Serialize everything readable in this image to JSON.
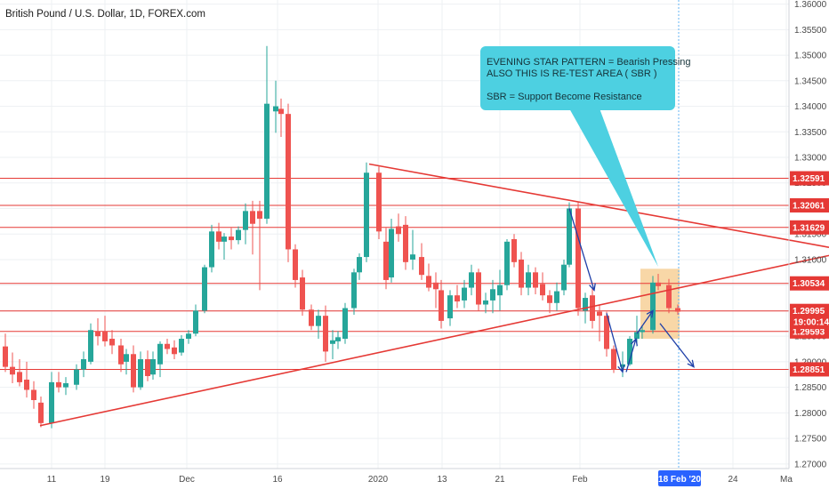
{
  "chart_data": {
    "type": "candlestick",
    "title": "British Pound / U.S. Dollar, 1D, FOREX.com",
    "y_axis": {
      "ylim": [
        1.2691,
        1.3608
      ],
      "ticks": [
        "1.36000",
        "1.35500",
        "1.35000",
        "1.34500",
        "1.34000",
        "1.33500",
        "1.33000",
        "1.32500",
        "1.32000",
        "1.31500",
        "1.31000",
        "1.30500",
        "1.30000",
        "1.29500",
        "1.29000",
        "1.28500",
        "1.28000",
        "1.27500",
        "1.27000"
      ],
      "scale": "linear",
      "side": "right"
    },
    "x_axis": {
      "ticks": [
        "11",
        "19",
        "Dec",
        "16",
        "2020",
        "13",
        "21",
        "Feb",
        "24",
        "Ma"
      ],
      "highlight_label": "18 Feb '20"
    },
    "grid": true,
    "colors": {
      "up": "#26a69a",
      "down": "#ef5350",
      "level": "#e53935",
      "trend": "#e53935",
      "arrow": "#1e3fa8",
      "callout": "#4dd0e1",
      "zone": "#f6c98a",
      "crosshair": "#64b5f6"
    },
    "levels": [
      {
        "label": "1.32591",
        "y": 1.32591
      },
      {
        "label": "1.32061",
        "y": 1.32061
      },
      {
        "label": "1.31629",
        "y": 1.31629
      },
      {
        "label": "1.30534",
        "y": 1.30534
      },
      {
        "label": "1.29995",
        "y": 1.29995
      },
      {
        "label": "1.29593",
        "y": 1.29593
      },
      {
        "label": "1.28851",
        "y": 1.28851
      }
    ],
    "countdown_label": "19:00:14",
    "countdown_y": 1.2978,
    "trend_lines": [
      {
        "name": "upper",
        "p1": [
          415,
          1.3287
        ],
        "p2": [
          932,
          1.3124
        ]
      },
      {
        "name": "lower",
        "p1": [
          45,
          1.2775
        ],
        "p2": [
          932,
          1.3108
        ]
      }
    ],
    "zone": {
      "x1": 720,
      "x2": 764,
      "y1": 1.3082,
      "y2": 1.2945
    },
    "candles": [
      {
        "x": 6,
        "o": 1.293,
        "h": 1.2955,
        "l": 1.288,
        "c": 1.289
      },
      {
        "x": 14,
        "o": 1.289,
        "h": 1.2918,
        "l": 1.2858,
        "c": 1.2875
      },
      {
        "x": 22,
        "o": 1.288,
        "h": 1.2905,
        "l": 1.2852,
        "c": 1.286
      },
      {
        "x": 30,
        "o": 1.2865,
        "h": 1.29,
        "l": 1.283,
        "c": 1.2845
      },
      {
        "x": 38,
        "o": 1.2845,
        "h": 1.2862,
        "l": 1.2808,
        "c": 1.2825
      },
      {
        "x": 46,
        "o": 1.282,
        "h": 1.2832,
        "l": 1.2772,
        "c": 1.278
      },
      {
        "x": 58,
        "o": 1.278,
        "h": 1.288,
        "l": 1.277,
        "c": 1.286
      },
      {
        "x": 66,
        "o": 1.286,
        "h": 1.288,
        "l": 1.284,
        "c": 1.285
      },
      {
        "x": 74,
        "o": 1.285,
        "h": 1.287,
        "l": 1.2835,
        "c": 1.2858
      },
      {
        "x": 86,
        "o": 1.2855,
        "h": 1.2895,
        "l": 1.2845,
        "c": 1.2885
      },
      {
        "x": 94,
        "o": 1.2885,
        "h": 1.292,
        "l": 1.287,
        "c": 1.2905
      },
      {
        "x": 102,
        "o": 1.29,
        "h": 1.2975,
        "l": 1.2895,
        "c": 1.2962
      },
      {
        "x": 110,
        "o": 1.296,
        "h": 1.2985,
        "l": 1.2932,
        "c": 1.295
      },
      {
        "x": 118,
        "o": 1.296,
        "h": 1.299,
        "l": 1.293,
        "c": 1.294
      },
      {
        "x": 126,
        "o": 1.2945,
        "h": 1.2962,
        "l": 1.2915,
        "c": 1.2932
      },
      {
        "x": 136,
        "o": 1.2932,
        "h": 1.2945,
        "l": 1.288,
        "c": 1.2895
      },
      {
        "x": 142,
        "o": 1.29,
        "h": 1.2925,
        "l": 1.2875,
        "c": 1.2915
      },
      {
        "x": 150,
        "o": 1.2915,
        "h": 1.2932,
        "l": 1.284,
        "c": 1.285
      },
      {
        "x": 158,
        "o": 1.285,
        "h": 1.292,
        "l": 1.2845,
        "c": 1.2905
      },
      {
        "x": 166,
        "o": 1.2905,
        "h": 1.2922,
        "l": 1.2862,
        "c": 1.2872
      },
      {
        "x": 172,
        "o": 1.2875,
        "h": 1.292,
        "l": 1.2865,
        "c": 1.2905
      },
      {
        "x": 180,
        "o": 1.2895,
        "h": 1.294,
        "l": 1.287,
        "c": 1.2935
      },
      {
        "x": 188,
        "o": 1.2935,
        "h": 1.2945,
        "l": 1.2915,
        "c": 1.2925
      },
      {
        "x": 196,
        "o": 1.2928,
        "h": 1.2942,
        "l": 1.2905,
        "c": 1.2915
      },
      {
        "x": 204,
        "o": 1.2918,
        "h": 1.2952,
        "l": 1.2912,
        "c": 1.2945
      },
      {
        "x": 212,
        "o": 1.2945,
        "h": 1.2962,
        "l": 1.2935,
        "c": 1.2955
      },
      {
        "x": 220,
        "o": 1.2955,
        "h": 1.3012,
        "l": 1.295,
        "c": 1.3
      },
      {
        "x": 230,
        "o": 1.3,
        "h": 1.309,
        "l": 1.2995,
        "c": 1.3085
      },
      {
        "x": 238,
        "o": 1.3085,
        "h": 1.3168,
        "l": 1.3075,
        "c": 1.3155
      },
      {
        "x": 246,
        "o": 1.3155,
        "h": 1.3172,
        "l": 1.312,
        "c": 1.3135
      },
      {
        "x": 252,
        "o": 1.3135,
        "h": 1.3152,
        "l": 1.31,
        "c": 1.3145
      },
      {
        "x": 260,
        "o": 1.3145,
        "h": 1.3162,
        "l": 1.312,
        "c": 1.3138
      },
      {
        "x": 268,
        "o": 1.3138,
        "h": 1.3165,
        "l": 1.313,
        "c": 1.3158
      },
      {
        "x": 276,
        "o": 1.3158,
        "h": 1.321,
        "l": 1.313,
        "c": 1.3195
      },
      {
        "x": 284,
        "o": 1.3195,
        "h": 1.3215,
        "l": 1.311,
        "c": 1.317
      },
      {
        "x": 292,
        "o": 1.3195,
        "h": 1.3215,
        "l": 1.304,
        "c": 1.318
      },
      {
        "x": 300,
        "o": 1.318,
        "h": 1.3518,
        "l": 1.317,
        "c": 1.3405
      },
      {
        "x": 310,
        "o": 1.339,
        "h": 1.345,
        "l": 1.3348,
        "c": 1.34
      },
      {
        "x": 316,
        "o": 1.3395,
        "h": 1.3415,
        "l": 1.334,
        "c": 1.3385
      },
      {
        "x": 324,
        "o": 1.3385,
        "h": 1.3405,
        "l": 1.3095,
        "c": 1.312
      },
      {
        "x": 332,
        "o": 1.312,
        "h": 1.313,
        "l": 1.3045,
        "c": 1.306
      },
      {
        "x": 340,
        "o": 1.3065,
        "h": 1.308,
        "l": 1.299,
        "c": 1.3002
      },
      {
        "x": 350,
        "o": 1.3002,
        "h": 1.3012,
        "l": 1.2962,
        "c": 1.297
      },
      {
        "x": 358,
        "o": 1.297,
        "h": 1.3002,
        "l": 1.2945,
        "c": 1.299
      },
      {
        "x": 366,
        "o": 1.299,
        "h": 1.301,
        "l": 1.29,
        "c": 1.292
      },
      {
        "x": 374,
        "o": 1.2935,
        "h": 1.2962,
        "l": 1.2905,
        "c": 1.2942
      },
      {
        "x": 380,
        "o": 1.294,
        "h": 1.296,
        "l": 1.2925,
        "c": 1.2948
      },
      {
        "x": 388,
        "o": 1.2945,
        "h": 1.3015,
        "l": 1.2935,
        "c": 1.3005
      },
      {
        "x": 398,
        "o": 1.3005,
        "h": 1.3082,
        "l": 1.2992,
        "c": 1.3075
      },
      {
        "x": 404,
        "o": 1.3075,
        "h": 1.3112,
        "l": 1.306,
        "c": 1.3105
      },
      {
        "x": 412,
        "o": 1.3105,
        "h": 1.329,
        "l": 1.3095,
        "c": 1.327
      },
      {
        "x": 426,
        "o": 1.327,
        "h": 1.3282,
        "l": 1.314,
        "c": 1.3155
      },
      {
        "x": 434,
        "o": 1.3135,
        "h": 1.3162,
        "l": 1.3042,
        "c": 1.306
      },
      {
        "x": 440,
        "o": 1.3065,
        "h": 1.318,
        "l": 1.3055,
        "c": 1.316
      },
      {
        "x": 448,
        "o": 1.3165,
        "h": 1.319,
        "l": 1.3135,
        "c": 1.315
      },
      {
        "x": 456,
        "o": 1.3168,
        "h": 1.3185,
        "l": 1.308,
        "c": 1.3095
      },
      {
        "x": 464,
        "o": 1.31,
        "h": 1.3158,
        "l": 1.308,
        "c": 1.311
      },
      {
        "x": 474,
        "o": 1.3105,
        "h": 1.3132,
        "l": 1.306,
        "c": 1.307
      },
      {
        "x": 482,
        "o": 1.3068,
        "h": 1.3092,
        "l": 1.3038,
        "c": 1.3045
      },
      {
        "x": 490,
        "o": 1.3055,
        "h": 1.3075,
        "l": 1.3005,
        "c": 1.3042
      },
      {
        "x": 496,
        "o": 1.304,
        "h": 1.306,
        "l": 1.2965,
        "c": 1.298
      },
      {
        "x": 506,
        "o": 1.2985,
        "h": 1.304,
        "l": 1.297,
        "c": 1.303
      },
      {
        "x": 514,
        "o": 1.303,
        "h": 1.305,
        "l": 1.3005,
        "c": 1.3018
      },
      {
        "x": 522,
        "o": 1.302,
        "h": 1.306,
        "l": 1.3005,
        "c": 1.3045
      },
      {
        "x": 530,
        "o": 1.3045,
        "h": 1.309,
        "l": 1.303,
        "c": 1.3075
      },
      {
        "x": 538,
        "o": 1.3075,
        "h": 1.3082,
        "l": 1.3,
        "c": 1.3012
      },
      {
        "x": 546,
        "o": 1.3012,
        "h": 1.3035,
        "l": 1.2995,
        "c": 1.302
      },
      {
        "x": 554,
        "o": 1.302,
        "h": 1.306,
        "l": 1.2995,
        "c": 1.3042
      },
      {
        "x": 562,
        "o": 1.303,
        "h": 1.308,
        "l": 1.3,
        "c": 1.305
      },
      {
        "x": 570,
        "o": 1.305,
        "h": 1.314,
        "l": 1.304,
        "c": 1.3135
      },
      {
        "x": 578,
        "o": 1.314,
        "h": 1.315,
        "l": 1.3085,
        "c": 1.3095
      },
      {
        "x": 586,
        "o": 1.31,
        "h": 1.3115,
        "l": 1.303,
        "c": 1.3045
      },
      {
        "x": 594,
        "o": 1.3045,
        "h": 1.309,
        "l": 1.303,
        "c": 1.3075
      },
      {
        "x": 602,
        "o": 1.3075,
        "h": 1.3085,
        "l": 1.3032,
        "c": 1.3045
      },
      {
        "x": 610,
        "o": 1.3052,
        "h": 1.3075,
        "l": 1.302,
        "c": 1.303
      },
      {
        "x": 618,
        "o": 1.303,
        "h": 1.304,
        "l": 1.2995,
        "c": 1.3015
      },
      {
        "x": 626,
        "o": 1.3015,
        "h": 1.3055,
        "l": 1.3,
        "c": 1.3038
      },
      {
        "x": 634,
        "o": 1.304,
        "h": 1.31,
        "l": 1.303,
        "c": 1.309
      },
      {
        "x": 640,
        "o": 1.309,
        "h": 1.3212,
        "l": 1.3085,
        "c": 1.32
      },
      {
        "x": 650,
        "o": 1.32,
        "h": 1.3212,
        "l": 1.299,
        "c": 1.3005
      },
      {
        "x": 658,
        "o": 1.3,
        "h": 1.3035,
        "l": 1.2975,
        "c": 1.3025
      },
      {
        "x": 666,
        "o": 1.303,
        "h": 1.3045,
        "l": 1.2965,
        "c": 1.298
      },
      {
        "x": 674,
        "o": 1.2998,
        "h": 1.3012,
        "l": 1.294,
        "c": 1.299
      },
      {
        "x": 682,
        "o": 1.299,
        "h": 1.2998,
        "l": 1.291,
        "c": 1.2925
      },
      {
        "x": 690,
        "o": 1.2925,
        "h": 1.2932,
        "l": 1.2878,
        "c": 1.2885
      },
      {
        "x": 700,
        "o": 1.289,
        "h": 1.292,
        "l": 1.287,
        "c": 1.2895
      },
      {
        "x": 708,
        "o": 1.2895,
        "h": 1.295,
        "l": 1.2892,
        "c": 1.2945
      },
      {
        "x": 716,
        "o": 1.2945,
        "h": 1.299,
        "l": 1.293,
        "c": 1.2958
      },
      {
        "x": 722,
        "o": 1.2958,
        "h": 1.297,
        "l": 1.2945,
        "c": 1.2962
      },
      {
        "x": 734,
        "o": 1.2962,
        "h": 1.3068,
        "l": 1.2955,
        "c": 1.3055
      },
      {
        "x": 740,
        "o": 1.3055,
        "h": 1.3072,
        "l": 1.304,
        "c": 1.3048
      },
      {
        "x": 752,
        "o": 1.305,
        "h": 1.3062,
        "l": 1.2995,
        "c": 1.3005
      },
      {
        "x": 762,
        "o": 1.3005,
        "h": 1.3012,
        "l": 1.2992,
        "c": 1.2998
      }
    ],
    "arrows": [
      {
        "from": [
          640,
          1.32
        ],
        "to": [
          668,
          1.304
        ]
      },
      {
        "from": [
          682,
          1.2995
        ],
        "to": [
          700,
          1.288
        ]
      },
      {
        "from": [
          704,
          1.288
        ],
        "to": [
          715,
          1.2945
        ]
      },
      {
        "from": [
          716,
          1.2955
        ],
        "to": [
          734,
          1.3
        ]
      },
      {
        "from": [
          742,
          1.2975
        ],
        "to": [
          780,
          1.289
        ]
      }
    ],
    "annotations": [
      "EVENING STAR PATTERN = Bearish Pressing",
      "ALSO THIS IS RE-TEST AREA ( SBR )",
      "SBR = Support Become Resistance"
    ],
    "legend": "none"
  }
}
